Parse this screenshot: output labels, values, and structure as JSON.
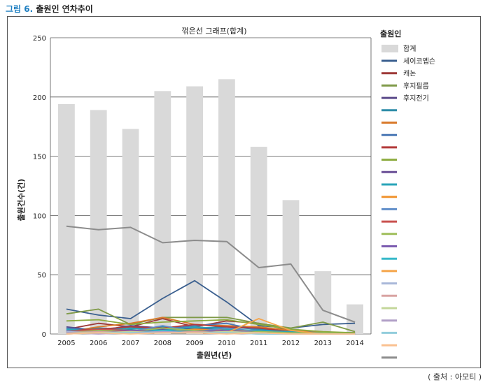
{
  "caption": {
    "label": "그림 6.",
    "text": "출원인 연차추이"
  },
  "source": "( 출처 : 아모티 )",
  "chart_data": {
    "type": "bar+line",
    "title": "꺾은선 그래프(합계)",
    "xlabel": "출원년(년)",
    "ylabel": "출원건수(건)",
    "ylim": [
      0,
      250
    ],
    "yticks": [
      0,
      50,
      100,
      150,
      200,
      250
    ],
    "categories": [
      "2005",
      "2006",
      "2007",
      "2008",
      "2009",
      "2010",
      "2011",
      "2012",
      "2013",
      "2014"
    ],
    "legend_title": "출원인",
    "legend_position": "right",
    "bars": {
      "name": "합계",
      "color": "#d9d9d9",
      "values": [
        194,
        189,
        173,
        205,
        209,
        215,
        158,
        113,
        53,
        25
      ]
    },
    "series": [
      {
        "name": "세이코엡슨",
        "color": "#3a5f8f",
        "values": [
          21,
          16,
          13,
          30,
          45,
          27,
          7,
          5,
          8,
          9
        ]
      },
      {
        "name": "캐논",
        "color": "#9e3a38",
        "values": [
          4,
          9,
          6,
          13,
          6,
          11,
          9,
          3,
          1,
          1
        ]
      },
      {
        "name": "후지필름",
        "color": "#7f9a48",
        "values": [
          17,
          21,
          8,
          14,
          14,
          14,
          9,
          5,
          10,
          2
        ]
      },
      {
        "name": "후지전기",
        "color": "#5b4a8a",
        "values": [
          6,
          3,
          7,
          5,
          4,
          5,
          5,
          2,
          1,
          1
        ]
      },
      {
        "name": "",
        "color": "#2e8ca8",
        "values": [
          3,
          5,
          4,
          6,
          5,
          6,
          4,
          2,
          1,
          0
        ]
      },
      {
        "name": "",
        "color": "#d97a2b",
        "values": [
          2,
          6,
          9,
          14,
          8,
          7,
          6,
          3,
          1,
          0
        ]
      },
      {
        "name": "",
        "color": "#4a78b5",
        "values": [
          5,
          3,
          6,
          4,
          7,
          9,
          3,
          2,
          1,
          0
        ]
      },
      {
        "name": "",
        "color": "#b33a3a",
        "values": [
          3,
          4,
          6,
          5,
          8,
          6,
          5,
          2,
          1,
          0
        ]
      },
      {
        "name": "",
        "color": "#8cab3e",
        "values": [
          11,
          12,
          8,
          10,
          11,
          12,
          8,
          4,
          2,
          1
        ]
      },
      {
        "name": "",
        "color": "#6a4f96",
        "values": [
          2,
          3,
          2,
          4,
          3,
          4,
          2,
          1,
          0,
          0
        ]
      },
      {
        "name": "",
        "color": "#2aa5b8",
        "values": [
          4,
          2,
          5,
          3,
          6,
          4,
          3,
          2,
          1,
          0
        ]
      },
      {
        "name": "",
        "color": "#f0932e",
        "values": [
          1,
          2,
          3,
          2,
          4,
          3,
          2,
          1,
          0,
          0
        ]
      },
      {
        "name": "",
        "color": "#5f8ec9",
        "values": [
          3,
          1,
          2,
          7,
          2,
          5,
          2,
          1,
          0,
          0
        ]
      },
      {
        "name": "",
        "color": "#c9524f",
        "values": [
          2,
          4,
          3,
          2,
          3,
          2,
          1,
          1,
          0,
          0
        ]
      },
      {
        "name": "",
        "color": "#9fbe5a",
        "values": [
          1,
          3,
          2,
          5,
          3,
          2,
          2,
          1,
          1,
          0
        ]
      },
      {
        "name": "",
        "color": "#7c5cb0",
        "values": [
          2,
          1,
          3,
          2,
          2,
          3,
          1,
          0,
          0,
          0
        ]
      },
      {
        "name": "",
        "color": "#37b9c9",
        "values": [
          1,
          2,
          1,
          3,
          2,
          1,
          1,
          0,
          0,
          0
        ]
      },
      {
        "name": "",
        "color": "#f5a54a",
        "values": [
          0,
          1,
          2,
          1,
          2,
          1,
          13,
          3,
          0,
          0
        ]
      },
      {
        "name": "",
        "color": "#a9b8d9",
        "values": [
          2,
          1,
          1,
          2,
          1,
          2,
          1,
          0,
          0,
          0
        ]
      },
      {
        "name": "",
        "color": "#d9a3a2",
        "values": [
          1,
          2,
          1,
          1,
          2,
          1,
          1,
          0,
          0,
          0
        ]
      },
      {
        "name": "",
        "color": "#c4d79b",
        "values": [
          1,
          1,
          2,
          1,
          1,
          2,
          1,
          0,
          0,
          0
        ]
      },
      {
        "name": "",
        "color": "#b1a0c7",
        "values": [
          1,
          0,
          1,
          2,
          1,
          1,
          0,
          0,
          0,
          0
        ]
      },
      {
        "name": "",
        "color": "#92cddc",
        "values": [
          0,
          1,
          1,
          1,
          1,
          1,
          0,
          0,
          0,
          0
        ]
      },
      {
        "name": "",
        "color": "#fac090",
        "values": [
          0,
          1,
          0,
          1,
          1,
          0,
          1,
          0,
          0,
          0
        ]
      },
      {
        "name": "",
        "color": "#8c8c8c",
        "values": [
          91,
          88,
          90,
          77,
          79,
          78,
          56,
          59,
          20,
          10
        ]
      }
    ]
  }
}
